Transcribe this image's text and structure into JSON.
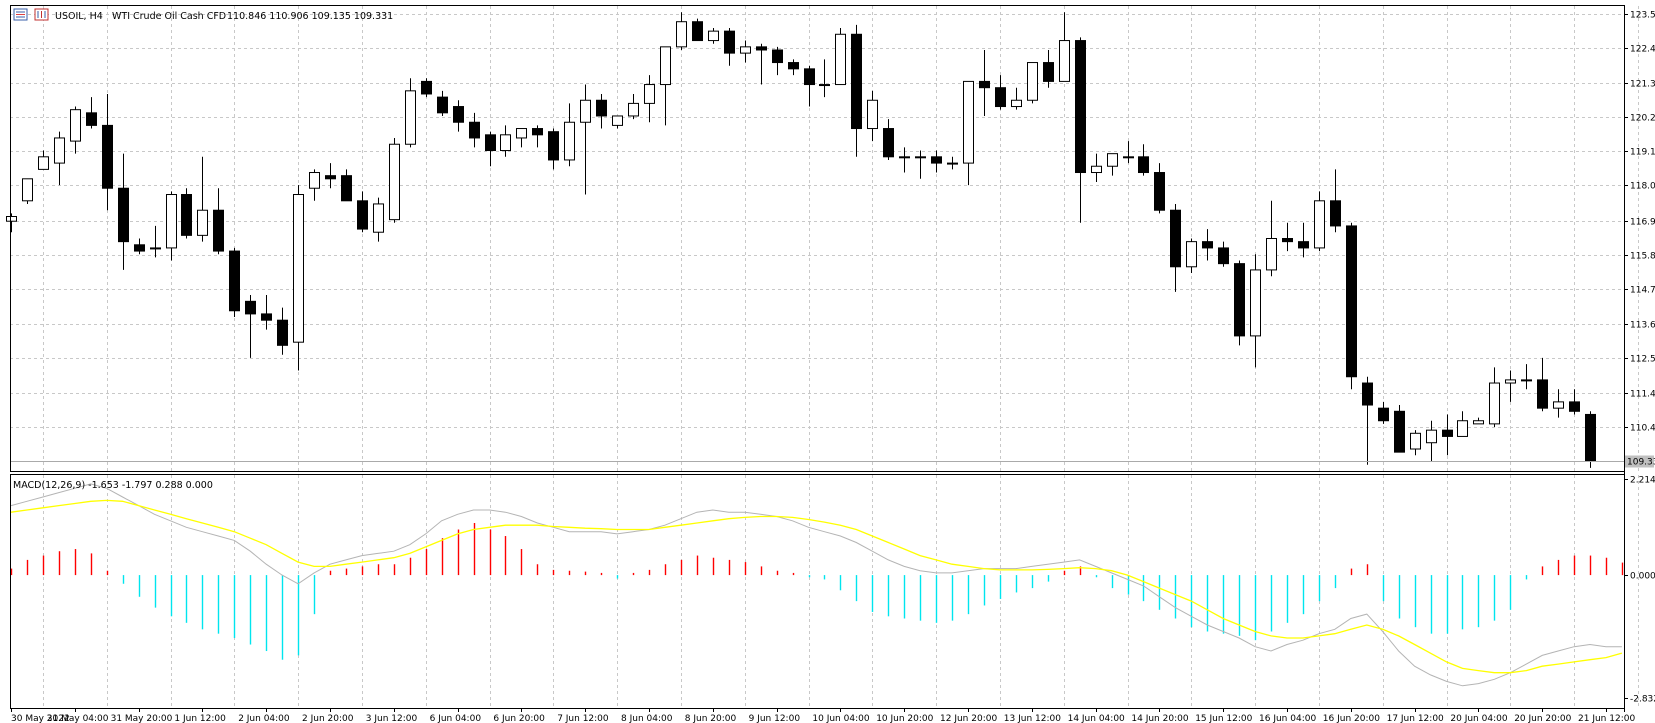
{
  "header": {
    "symbol": "USOIL, H4",
    "description": "WTI Crude Oil Cash CFD",
    "ohlc": "110.846 110.906 109.135 109.331"
  },
  "current_price_label": "109.331",
  "macd": {
    "label": "MACD(12,26,9) -1.653 -1.797 0.288 0.000",
    "axis_labels": [
      "2.214",
      "0.000",
      "-2.832"
    ]
  },
  "price_axis_labels": [
    "123.545",
    "122.455",
    "121.365",
    "120.275",
    "119.185",
    "118.095",
    "116.970",
    "115.870",
    "114.780",
    "113.690",
    "112.590",
    "111.495",
    "110.405"
  ],
  "time_labels": [
    "30 May 2022",
    "31 May 04:00",
    "31 May 20:00",
    "1 Jun 12:00",
    "2 Jun 04:00",
    "2 Jun 20:00",
    "3 Jun 12:00",
    "6 Jun 04:00",
    "6 Jun 20:00",
    "7 Jun 12:00",
    "8 Jun 04:00",
    "8 Jun 20:00",
    "9 Jun 12:00",
    "10 Jun 04:00",
    "10 Jun 20:00",
    "12 Jun 20:00",
    "13 Jun 12:00",
    "14 Jun 04:00",
    "14 Jun 20:00",
    "15 Jun 12:00",
    "16 Jun 04:00",
    "16 Jun 20:00",
    "17 Jun 12:00",
    "20 Jun 04:00",
    "20 Jun 20:00",
    "21 Jun 12:00"
  ],
  "colors": {
    "bull_body": "#ffffff",
    "bear_body": "#000000",
    "grid": "#c8c8c8",
    "macd_pos": "#ff0000",
    "macd_neg": "#00e5ee",
    "signal": "#ffff00",
    "macd_line": "#b4b4b4"
  },
  "chart_data": [
    {
      "type": "candlestick",
      "symbol": "USOIL",
      "timeframe": "H4",
      "ylim": [
        109.0,
        123.8
      ],
      "candles": [
        {
          "o": 116.95,
          "h": 117.2,
          "l": 116.6,
          "c": 117.1
        },
        {
          "o": 117.6,
          "h": 118.3,
          "l": 117.5,
          "c": 118.3
        },
        {
          "o": 118.6,
          "h": 119.2,
          "l": 118.6,
          "c": 119.0
        },
        {
          "o": 118.8,
          "h": 119.8,
          "l": 118.1,
          "c": 119.6
        },
        {
          "o": 119.5,
          "h": 120.6,
          "l": 119.1,
          "c": 120.5
        },
        {
          "o": 120.4,
          "h": 120.9,
          "l": 119.9,
          "c": 120.0
        },
        {
          "o": 120.0,
          "h": 121.0,
          "l": 117.3,
          "c": 118.0
        },
        {
          "o": 118.0,
          "h": 119.1,
          "l": 115.4,
          "c": 116.3
        },
        {
          "o": 116.2,
          "h": 116.4,
          "l": 115.9,
          "c": 116.0
        },
        {
          "o": 116.1,
          "h": 116.8,
          "l": 115.8,
          "c": 116.1
        },
        {
          "o": 116.1,
          "h": 117.9,
          "l": 115.7,
          "c": 117.8
        },
        {
          "o": 117.8,
          "h": 118.0,
          "l": 116.4,
          "c": 116.5
        },
        {
          "o": 116.5,
          "h": 119.0,
          "l": 116.3,
          "c": 117.3
        },
        {
          "o": 117.3,
          "h": 118.0,
          "l": 115.9,
          "c": 116.0
        },
        {
          "o": 116.0,
          "h": 116.1,
          "l": 113.9,
          "c": 114.1
        },
        {
          "o": 114.4,
          "h": 114.6,
          "l": 112.6,
          "c": 114.0
        },
        {
          "o": 114.0,
          "h": 114.6,
          "l": 113.5,
          "c": 113.8
        },
        {
          "o": 113.8,
          "h": 114.2,
          "l": 112.7,
          "c": 113.0
        },
        {
          "o": 113.1,
          "h": 118.1,
          "l": 112.2,
          "c": 117.8
        },
        {
          "o": 118.0,
          "h": 118.6,
          "l": 117.6,
          "c": 118.5
        },
        {
          "o": 118.4,
          "h": 118.8,
          "l": 118.0,
          "c": 118.3
        },
        {
          "o": 118.4,
          "h": 118.6,
          "l": 117.6,
          "c": 117.6
        },
        {
          "o": 117.6,
          "h": 117.9,
          "l": 116.6,
          "c": 116.7
        },
        {
          "o": 116.6,
          "h": 117.7,
          "l": 116.3,
          "c": 117.5
        },
        {
          "o": 117.0,
          "h": 119.6,
          "l": 116.9,
          "c": 119.4
        },
        {
          "o": 119.4,
          "h": 121.5,
          "l": 119.3,
          "c": 121.1
        },
        {
          "o": 121.4,
          "h": 121.5,
          "l": 120.9,
          "c": 121.0
        },
        {
          "o": 120.9,
          "h": 121.1,
          "l": 120.3,
          "c": 120.4
        },
        {
          "o": 120.6,
          "h": 120.8,
          "l": 119.8,
          "c": 120.1
        },
        {
          "o": 120.1,
          "h": 120.4,
          "l": 119.3,
          "c": 119.6
        },
        {
          "o": 119.7,
          "h": 119.8,
          "l": 118.7,
          "c": 119.2
        },
        {
          "o": 119.2,
          "h": 120.0,
          "l": 119.0,
          "c": 119.7
        },
        {
          "o": 119.6,
          "h": 119.9,
          "l": 119.3,
          "c": 119.9
        },
        {
          "o": 119.9,
          "h": 120.0,
          "l": 119.3,
          "c": 119.7
        },
        {
          "o": 119.8,
          "h": 119.9,
          "l": 118.6,
          "c": 118.9
        },
        {
          "o": 118.9,
          "h": 120.7,
          "l": 118.7,
          "c": 120.1
        },
        {
          "o": 120.1,
          "h": 121.3,
          "l": 117.8,
          "c": 120.8
        },
        {
          "o": 120.8,
          "h": 121.0,
          "l": 119.9,
          "c": 120.3
        },
        {
          "o": 120.0,
          "h": 120.3,
          "l": 119.9,
          "c": 120.3
        },
        {
          "o": 120.3,
          "h": 121.0,
          "l": 120.2,
          "c": 120.7
        },
        {
          "o": 120.7,
          "h": 121.6,
          "l": 120.1,
          "c": 121.3
        },
        {
          "o": 121.3,
          "h": 122.5,
          "l": 120.0,
          "c": 122.5
        },
        {
          "o": 122.5,
          "h": 123.6,
          "l": 122.4,
          "c": 123.3
        },
        {
          "o": 123.3,
          "h": 123.4,
          "l": 122.7,
          "c": 122.7
        },
        {
          "o": 122.7,
          "h": 123.1,
          "l": 122.6,
          "c": 123.0
        },
        {
          "o": 123.0,
          "h": 123.1,
          "l": 121.9,
          "c": 122.3
        },
        {
          "o": 122.3,
          "h": 122.7,
          "l": 122.0,
          "c": 122.5
        },
        {
          "o": 122.5,
          "h": 122.6,
          "l": 121.3,
          "c": 122.4
        },
        {
          "o": 122.4,
          "h": 122.5,
          "l": 121.6,
          "c": 122.0
        },
        {
          "o": 122.0,
          "h": 122.1,
          "l": 121.6,
          "c": 121.8
        },
        {
          "o": 121.8,
          "h": 121.9,
          "l": 120.6,
          "c": 121.3
        },
        {
          "o": 121.3,
          "h": 122.1,
          "l": 120.9,
          "c": 121.3
        },
        {
          "o": 121.3,
          "h": 123.1,
          "l": 121.3,
          "c": 122.9
        },
        {
          "o": 122.9,
          "h": 123.2,
          "l": 119.0,
          "c": 119.9
        },
        {
          "o": 119.9,
          "h": 121.1,
          "l": 119.5,
          "c": 120.8
        },
        {
          "o": 119.9,
          "h": 120.2,
          "l": 118.9,
          "c": 119.0
        },
        {
          "o": 119.0,
          "h": 119.3,
          "l": 118.5,
          "c": 119.0
        },
        {
          "o": 119.0,
          "h": 119.2,
          "l": 118.3,
          "c": 119.0
        },
        {
          "o": 119.0,
          "h": 119.2,
          "l": 118.5,
          "c": 118.8
        },
        {
          "o": 118.8,
          "h": 119.0,
          "l": 118.6,
          "c": 118.8
        },
        {
          "o": 118.8,
          "h": 121.4,
          "l": 118.1,
          "c": 121.4
        },
        {
          "o": 121.4,
          "h": 122.4,
          "l": 120.3,
          "c": 121.2
        },
        {
          "o": 121.2,
          "h": 121.6,
          "l": 120.5,
          "c": 120.6
        },
        {
          "o": 120.6,
          "h": 121.2,
          "l": 120.5,
          "c": 120.8
        },
        {
          "o": 120.8,
          "h": 122.0,
          "l": 120.7,
          "c": 122.0
        },
        {
          "o": 122.0,
          "h": 122.4,
          "l": 121.2,
          "c": 121.4
        },
        {
          "o": 121.4,
          "h": 123.6,
          "l": 121.4,
          "c": 122.7
        },
        {
          "o": 122.7,
          "h": 122.8,
          "l": 116.9,
          "c": 118.5
        },
        {
          "o": 118.5,
          "h": 119.1,
          "l": 118.2,
          "c": 118.7
        },
        {
          "o": 118.7,
          "h": 119.1,
          "l": 118.4,
          "c": 119.1
        },
        {
          "o": 119.0,
          "h": 119.5,
          "l": 118.8,
          "c": 119.0
        },
        {
          "o": 119.0,
          "h": 119.4,
          "l": 118.4,
          "c": 118.5
        },
        {
          "o": 118.5,
          "h": 118.8,
          "l": 117.2,
          "c": 117.3
        },
        {
          "o": 117.3,
          "h": 117.5,
          "l": 114.7,
          "c": 115.5
        },
        {
          "o": 115.5,
          "h": 116.4,
          "l": 115.3,
          "c": 116.3
        },
        {
          "o": 116.3,
          "h": 116.7,
          "l": 115.7,
          "c": 116.1
        },
        {
          "o": 116.1,
          "h": 116.3,
          "l": 115.5,
          "c": 115.6
        },
        {
          "o": 115.6,
          "h": 115.7,
          "l": 113.0,
          "c": 113.3
        },
        {
          "o": 113.3,
          "h": 115.9,
          "l": 112.3,
          "c": 115.4
        },
        {
          "o": 115.4,
          "h": 117.6,
          "l": 115.2,
          "c": 116.4
        },
        {
          "o": 116.4,
          "h": 116.9,
          "l": 116.0,
          "c": 116.3
        },
        {
          "o": 116.3,
          "h": 116.9,
          "l": 115.8,
          "c": 116.1
        },
        {
          "o": 116.1,
          "h": 117.9,
          "l": 116.0,
          "c": 117.6
        },
        {
          "o": 117.6,
          "h": 118.6,
          "l": 116.6,
          "c": 116.8
        },
        {
          "o": 116.8,
          "h": 116.9,
          "l": 111.6,
          "c": 112.0
        },
        {
          "o": 111.8,
          "h": 112.0,
          "l": 109.2,
          "c": 111.1
        },
        {
          "o": 111.0,
          "h": 111.2,
          "l": 110.5,
          "c": 110.6
        },
        {
          "o": 110.9,
          "h": 111.1,
          "l": 109.6,
          "c": 109.6
        },
        {
          "o": 109.7,
          "h": 110.3,
          "l": 109.5,
          "c": 110.2
        },
        {
          "o": 109.9,
          "h": 110.6,
          "l": 109.3,
          "c": 110.3
        },
        {
          "o": 110.3,
          "h": 110.8,
          "l": 109.5,
          "c": 110.1
        },
        {
          "o": 110.1,
          "h": 110.9,
          "l": 110.1,
          "c": 110.6
        },
        {
          "o": 110.5,
          "h": 110.7,
          "l": 110.5,
          "c": 110.6
        },
        {
          "o": 110.5,
          "h": 112.3,
          "l": 110.4,
          "c": 111.8
        },
        {
          "o": 111.8,
          "h": 112.2,
          "l": 111.2,
          "c": 111.9
        },
        {
          "o": 111.9,
          "h": 112.4,
          "l": 111.6,
          "c": 111.9
        },
        {
          "o": 111.9,
          "h": 112.6,
          "l": 110.9,
          "c": 111.0
        },
        {
          "o": 111.0,
          "h": 111.6,
          "l": 110.7,
          "c": 111.2
        },
        {
          "o": 111.2,
          "h": 111.6,
          "l": 110.8,
          "c": 110.9
        },
        {
          "o": 110.8,
          "h": 110.9,
          "l": 109.1,
          "c": 109.331
        }
      ]
    },
    {
      "type": "bar",
      "name": "MACD(12,26,9)",
      "ylim": [
        -2.832,
        2.214
      ],
      "histogram": [
        0.15,
        0.35,
        0.45,
        0.55,
        0.6,
        0.5,
        0.1,
        -0.2,
        -0.5,
        -0.75,
        -0.95,
        -1.1,
        -1.25,
        -1.35,
        -1.45,
        -1.6,
        -1.75,
        -1.95,
        -1.85,
        -0.9,
        0.1,
        0.15,
        0.2,
        0.25,
        0.25,
        0.4,
        0.6,
        0.85,
        1.05,
        1.2,
        1.05,
        0.9,
        0.6,
        0.25,
        0.12,
        0.1,
        0.08,
        0.05,
        -0.08,
        0.05,
        0.12,
        0.25,
        0.35,
        0.45,
        0.4,
        0.35,
        0.3,
        0.2,
        0.1,
        0.05,
        -0.05,
        -0.1,
        -0.35,
        -0.6,
        -0.85,
        -0.95,
        -1.0,
        -1.05,
        -1.1,
        -1.05,
        -0.9,
        -0.7,
        -0.55,
        -0.4,
        -0.3,
        -0.15,
        0.1,
        0.2,
        -0.05,
        -0.3,
        -0.45,
        -0.6,
        -0.8,
        -1.0,
        -1.2,
        -1.3,
        -1.35,
        -1.4,
        -1.5,
        -1.3,
        -1.1,
        -0.9,
        -0.6,
        -0.3,
        0.15,
        0.25,
        -0.6,
        -1.0,
        -1.2,
        -1.35,
        -1.35,
        -1.25,
        -1.2,
        -1.05,
        -0.8,
        -0.1,
        0.2,
        0.35,
        0.45,
        0.45,
        0.4,
        0.288
      ],
      "macd_line": [
        1.6,
        1.7,
        1.8,
        1.9,
        2.0,
        2.1,
        2.0,
        1.8,
        1.6,
        1.4,
        1.25,
        1.1,
        1.0,
        0.9,
        0.8,
        0.55,
        0.25,
        0.0,
        -0.2,
        0.05,
        0.25,
        0.35,
        0.45,
        0.5,
        0.55,
        0.7,
        0.95,
        1.25,
        1.4,
        1.5,
        1.5,
        1.45,
        1.35,
        1.2,
        1.1,
        1.0,
        1.0,
        1.0,
        0.95,
        1.0,
        1.05,
        1.15,
        1.3,
        1.45,
        1.5,
        1.45,
        1.45,
        1.4,
        1.35,
        1.25,
        1.1,
        1.0,
        0.9,
        0.75,
        0.55,
        0.35,
        0.2,
        0.1,
        0.05,
        0.05,
        0.1,
        0.15,
        0.15,
        0.15,
        0.2,
        0.25,
        0.3,
        0.35,
        0.2,
        0.05,
        -0.1,
        -0.25,
        -0.5,
        -0.75,
        -0.95,
        -1.15,
        -1.3,
        -1.45,
        -1.65,
        -1.75,
        -1.6,
        -1.5,
        -1.35,
        -1.25,
        -1.0,
        -0.9,
        -1.3,
        -1.75,
        -2.1,
        -2.3,
        -2.45,
        -2.55,
        -2.5,
        -2.4,
        -2.25,
        -2.05,
        -1.85,
        -1.75,
        -1.65,
        -1.6,
        -1.65,
        -1.653
      ],
      "signal_line": [
        1.45,
        1.5,
        1.55,
        1.6,
        1.65,
        1.7,
        1.72,
        1.7,
        1.6,
        1.5,
        1.4,
        1.3,
        1.2,
        1.1,
        1.0,
        0.85,
        0.7,
        0.5,
        0.3,
        0.2,
        0.2,
        0.25,
        0.3,
        0.35,
        0.4,
        0.5,
        0.65,
        0.8,
        0.95,
        1.05,
        1.1,
        1.15,
        1.15,
        1.15,
        1.12,
        1.1,
        1.08,
        1.07,
        1.05,
        1.05,
        1.05,
        1.1,
        1.15,
        1.2,
        1.25,
        1.3,
        1.33,
        1.35,
        1.35,
        1.33,
        1.28,
        1.22,
        1.15,
        1.05,
        0.9,
        0.75,
        0.6,
        0.45,
        0.35,
        0.25,
        0.2,
        0.15,
        0.12,
        0.12,
        0.12,
        0.13,
        0.15,
        0.17,
        0.15,
        0.1,
        0.0,
        -0.15,
        -0.3,
        -0.45,
        -0.6,
        -0.8,
        -1.0,
        -1.15,
        -1.3,
        -1.4,
        -1.45,
        -1.45,
        -1.4,
        -1.35,
        -1.25,
        -1.15,
        -1.25,
        -1.4,
        -1.6,
        -1.8,
        -2.0,
        -2.15,
        -2.2,
        -2.25,
        -2.25,
        -2.2,
        -2.1,
        -2.05,
        -2.0,
        -1.95,
        -1.9,
        -1.797
      ]
    }
  ]
}
